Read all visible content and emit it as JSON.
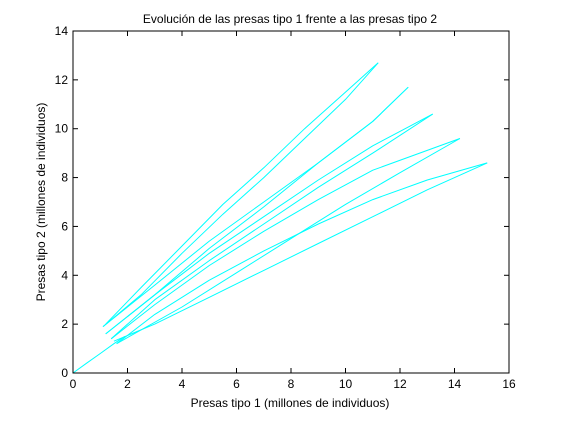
{
  "chart_data": {
    "type": "line",
    "title": "Evolución de las presas tipo 1 frente a las presas tipo 2",
    "xlabel": "Presas tipo 1 (millones de individuos)",
    "ylabel": "Presas tipo 2 (millones de individuos)",
    "xlim": [
      0,
      16
    ],
    "ylim": [
      0,
      14
    ],
    "xticks": [
      0,
      2,
      4,
      6,
      8,
      10,
      12,
      14,
      16
    ],
    "yticks": [
      0,
      2,
      4,
      6,
      8,
      10,
      12,
      14
    ],
    "grid": false,
    "legend": "none",
    "line_color": "#00ffff",
    "series": [
      {
        "x": [
          0,
          0.5,
          1.0,
          1.5,
          1.9
        ],
        "y": [
          0,
          0.4,
          0.8,
          1.2,
          1.5
        ]
      },
      {
        "x": [
          1.2,
          2.5,
          4.0,
          5.5,
          7.0,
          8.5,
          10.0,
          11.2
        ],
        "y": [
          2.0,
          3.5,
          5.2,
          6.9,
          8.4,
          10.0,
          11.5,
          12.7
        ]
      },
      {
        "x": [
          11.2,
          10.0,
          8.5,
          7.0,
          5.5,
          4.0,
          2.5,
          1.1
        ],
        "y": [
          12.7,
          11.2,
          9.6,
          8.0,
          6.5,
          4.9,
          3.2,
          1.9
        ]
      },
      {
        "x": [
          1.1,
          3.0,
          5.0,
          7.0,
          9.0,
          11.0,
          12.3
        ],
        "y": [
          1.9,
          3.6,
          5.4,
          7.0,
          8.6,
          10.3,
          11.7
        ]
      },
      {
        "x": [
          12.3,
          11.0,
          9.0,
          7.0,
          5.0,
          3.0,
          1.2
        ],
        "y": [
          11.7,
          10.3,
          8.6,
          6.8,
          5.1,
          3.2,
          1.6
        ]
      },
      {
        "x": [
          1.2,
          3.0,
          5.0,
          7.0,
          9.0,
          11.0,
          13.2
        ],
        "y": [
          1.6,
          3.2,
          4.9,
          6.4,
          7.9,
          9.3,
          10.6
        ]
      },
      {
        "x": [
          13.2,
          11.0,
          9.0,
          7.0,
          5.0,
          3.0,
          1.4
        ],
        "y": [
          10.6,
          9.0,
          7.6,
          6.1,
          4.6,
          3.0,
          1.4
        ]
      },
      {
        "x": [
          1.4,
          3.0,
          5.0,
          7.0,
          9.0,
          11.0,
          14.2
        ],
        "y": [
          1.4,
          2.8,
          4.4,
          5.8,
          7.1,
          8.3,
          9.6
        ]
      },
      {
        "x": [
          14.2,
          12.0,
          10.0,
          8.0,
          6.0,
          4.0,
          1.6
        ],
        "y": [
          9.6,
          8.2,
          6.9,
          5.5,
          4.1,
          2.7,
          1.2
        ]
      },
      {
        "x": [
          1.6,
          3.0,
          5.0,
          7.0,
          9.0,
          11.0,
          13.0,
          15.2
        ],
        "y": [
          1.2,
          2.4,
          3.8,
          5.0,
          6.1,
          7.1,
          7.9,
          8.6
        ]
      },
      {
        "x": [
          15.2,
          13.0,
          11.0,
          9.0,
          7.0,
          5.0,
          3.0,
          1.5
        ],
        "y": [
          8.6,
          7.5,
          6.4,
          5.3,
          4.2,
          3.1,
          2.0,
          1.3
        ]
      }
    ]
  }
}
